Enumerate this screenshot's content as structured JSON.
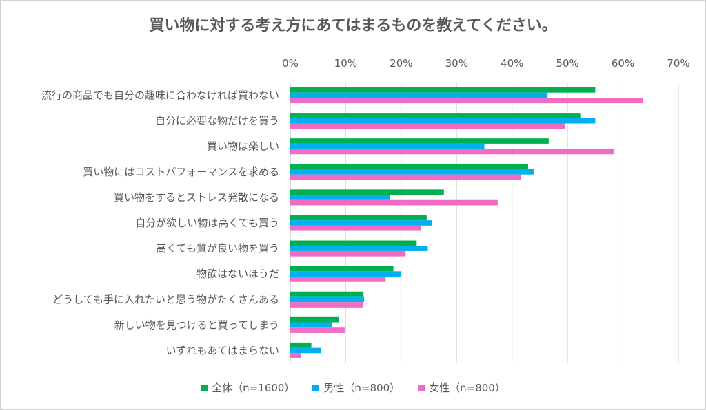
{
  "chart_data": {
    "type": "bar",
    "orientation": "horizontal",
    "title": "買い物に対する考え方にあてはまるものを教えてください。",
    "xlim": [
      0,
      70
    ],
    "x_ticks": [
      "0%",
      "10%",
      "20%",
      "30%",
      "40%",
      "50%",
      "60%",
      "70%"
    ],
    "grid": true,
    "legend_position": "bottom",
    "categories": [
      "流行の商品でも自分の趣味に合わなければ買わない",
      "自分に必要な物だけを買う",
      "買い物は楽しい",
      "買い物にはコストパフォーマンスを求める",
      "買い物をするとストレス発散になる",
      "自分が欲しい物は高くても買う",
      "高くても質が良い物を買う",
      "物欲はないほうだ",
      "どうしても手に入れたいと思う物がたくさんある",
      "新しい物を見つけると買ってしまう",
      "いずれもあてはまらない"
    ],
    "series": [
      {
        "name": "全体（n=1600）",
        "color": "#00b050",
        "values": [
          55.0,
          52.3,
          46.6,
          42.9,
          27.7,
          24.6,
          22.8,
          18.6,
          13.2,
          8.7,
          3.8
        ]
      },
      {
        "name": "男性（n=800）",
        "color": "#00b0f0",
        "values": [
          46.4,
          55.0,
          35.0,
          43.9,
          18.0,
          25.5,
          24.8,
          20.0,
          13.3,
          7.5,
          5.6
        ]
      },
      {
        "name": "女性（n=800）",
        "color": "#f06cc4",
        "values": [
          63.6,
          49.6,
          58.3,
          41.6,
          37.4,
          23.6,
          20.8,
          17.2,
          13.1,
          9.8,
          1.9
        ]
      }
    ]
  }
}
